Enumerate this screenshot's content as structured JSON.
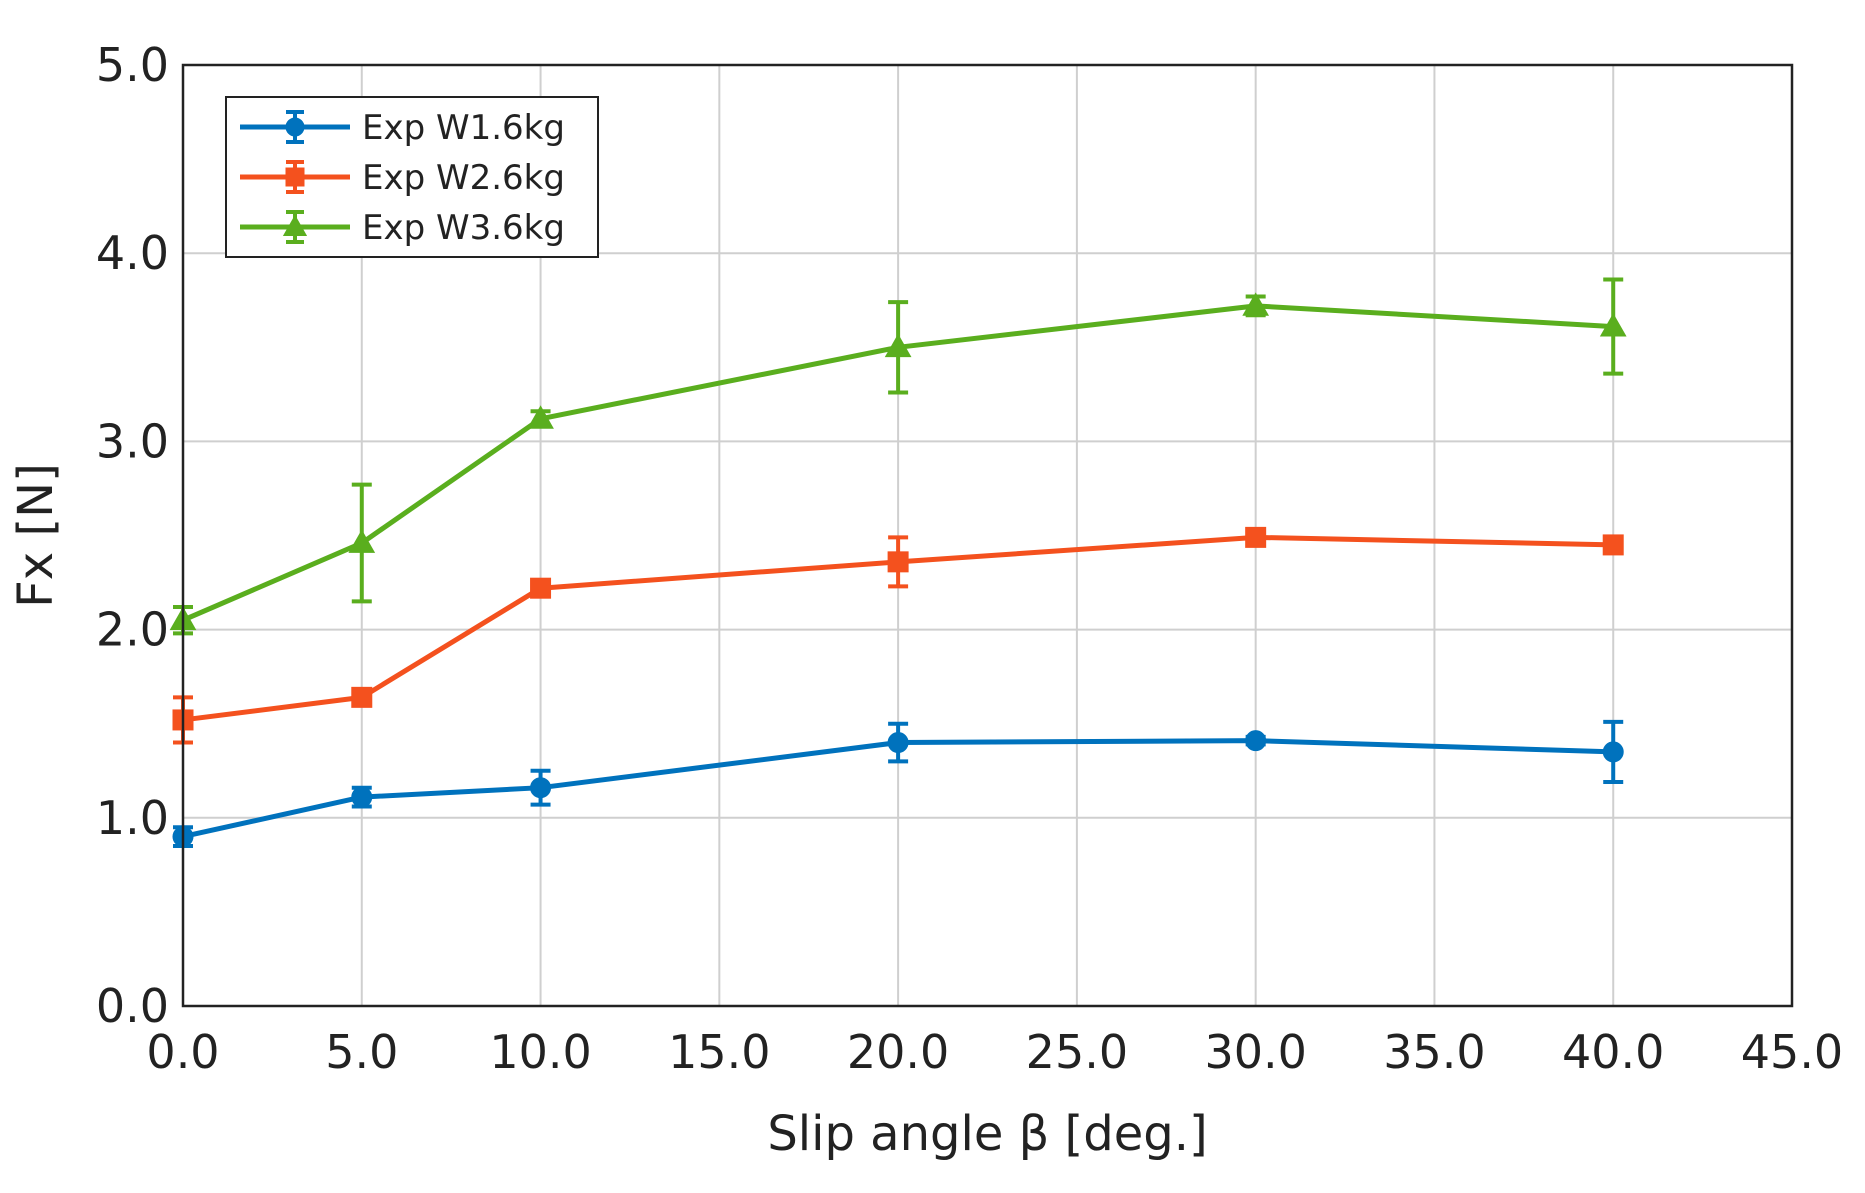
{
  "chart_data": {
    "type": "line",
    "title": "",
    "xlabel": "Slip angle β [deg.]",
    "ylabel": "Fx [N]",
    "xlim": [
      0,
      45
    ],
    "ylim": [
      0,
      5
    ],
    "xticks": [
      0,
      5,
      10,
      15,
      20,
      25,
      30,
      35,
      40,
      45
    ],
    "xtick_labels": [
      "0.0",
      "5.0",
      "10.0",
      "15.0",
      "20.0",
      "25.0",
      "30.0",
      "35.0",
      "40.0",
      "45.0"
    ],
    "yticks": [
      0,
      1,
      2,
      3,
      4,
      5
    ],
    "ytick_labels": [
      "0.0",
      "1.0",
      "2.0",
      "3.0",
      "4.0",
      "5.0"
    ],
    "grid": true,
    "legend_position": "top-left",
    "x": [
      0,
      5,
      10,
      20,
      30,
      40
    ],
    "series": [
      {
        "name": "Exp W1.6kg",
        "color": "#0072BD",
        "marker": "circle",
        "values": [
          0.9,
          1.11,
          1.16,
          1.4,
          1.41,
          1.35
        ],
        "errors": [
          0.05,
          0.05,
          0.09,
          0.1,
          0.02,
          0.16
        ]
      },
      {
        "name": "Exp W2.6kg",
        "color": "#F4511E",
        "marker": "square",
        "values": [
          1.52,
          1.64,
          2.22,
          2.36,
          2.49,
          2.45
        ],
        "errors": [
          0.12,
          0.03,
          0.03,
          0.13,
          0.03,
          0.03
        ]
      },
      {
        "name": "Exp W3.6kg",
        "color": "#5AAE1E",
        "marker": "triangle",
        "values": [
          2.05,
          2.46,
          3.12,
          3.5,
          3.72,
          3.61
        ],
        "errors": [
          0.07,
          0.31,
          0.04,
          0.24,
          0.05,
          0.25
        ]
      }
    ]
  }
}
